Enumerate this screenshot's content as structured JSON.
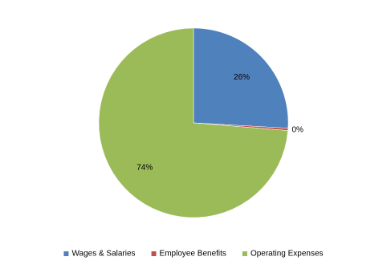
{
  "chart_data": {
    "type": "pie",
    "categories": [
      "Wages & Salaries",
      "Employee Benefits",
      "Operating Expenses"
    ],
    "values": [
      26,
      0.4,
      74
    ],
    "value_labels": [
      "26%",
      "0%",
      "74%"
    ],
    "colors": [
      "#4f81bd",
      "#c0504d",
      "#9bbb59"
    ],
    "legend": "bottom"
  }
}
